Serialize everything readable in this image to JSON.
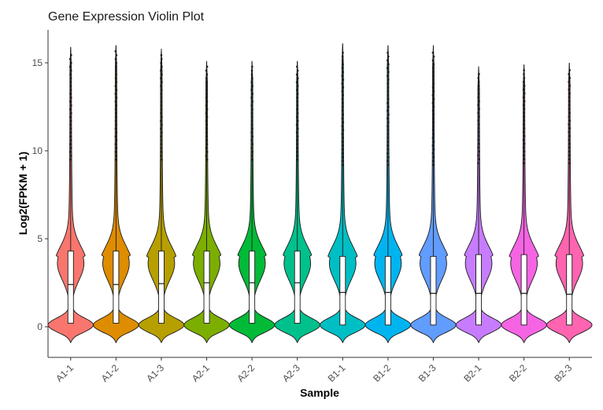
{
  "chart_data": {
    "type": "violin",
    "title": "Gene Expression Violin Plot",
    "xlabel": "Sample",
    "ylabel": "Log2(FPKM + 1)",
    "ylim": [
      -1.0,
      16.2
    ],
    "yticks": [
      0,
      5,
      10,
      15
    ],
    "grid": false,
    "legend": "none",
    "series": [
      {
        "name": "A1-1",
        "color": "#F8766D",
        "q1": 0.2,
        "median": 2.4,
        "q3": 4.3,
        "max": 15.9,
        "min": -0.9
      },
      {
        "name": "A1-2",
        "color": "#DE8C00",
        "q1": 0.2,
        "median": 2.4,
        "q3": 4.3,
        "max": 16.0,
        "min": -0.9
      },
      {
        "name": "A1-3",
        "color": "#B79F00",
        "q1": 0.2,
        "median": 2.45,
        "q3": 4.3,
        "max": 15.8,
        "min": -0.9
      },
      {
        "name": "A2-1",
        "color": "#7CAE00",
        "q1": 0.2,
        "median": 2.5,
        "q3": 4.3,
        "max": 15.1,
        "min": -0.9
      },
      {
        "name": "A2-2",
        "color": "#00BA38",
        "q1": 0.2,
        "median": 2.5,
        "q3": 4.3,
        "max": 15.1,
        "min": -0.9
      },
      {
        "name": "A2-3",
        "color": "#00C08B",
        "q1": 0.2,
        "median": 2.5,
        "q3": 4.3,
        "max": 15.1,
        "min": -0.9
      },
      {
        "name": "B1-1",
        "color": "#00BFC4",
        "q1": 0.1,
        "median": 1.95,
        "q3": 4.0,
        "max": 16.1,
        "min": -0.9
      },
      {
        "name": "B1-2",
        "color": "#00B4F0",
        "q1": 0.1,
        "median": 1.95,
        "q3": 4.0,
        "max": 16.0,
        "min": -0.9
      },
      {
        "name": "B1-3",
        "color": "#619CFF",
        "q1": 0.1,
        "median": 1.9,
        "q3": 4.0,
        "max": 16.0,
        "min": -0.9
      },
      {
        "name": "B2-1",
        "color": "#C77CFF",
        "q1": 0.1,
        "median": 1.9,
        "q3": 4.1,
        "max": 14.8,
        "min": -0.9
      },
      {
        "name": "B2-2",
        "color": "#F564E3",
        "q1": 0.1,
        "median": 1.9,
        "q3": 4.1,
        "max": 14.9,
        "min": -0.9
      },
      {
        "name": "B2-3",
        "color": "#FF64B0",
        "q1": 0.1,
        "median": 1.85,
        "q3": 4.1,
        "max": 15.0,
        "min": -0.9
      }
    ]
  }
}
